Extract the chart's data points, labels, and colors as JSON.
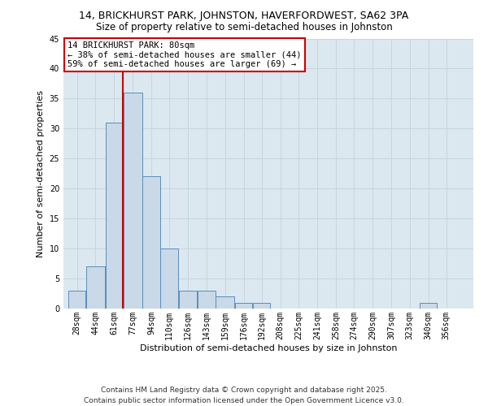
{
  "title": "14, BRICKHURST PARK, JOHNSTON, HAVERFORDWEST, SA62 3PA",
  "subtitle": "Size of property relative to semi-detached houses in Johnston",
  "xlabel": "Distribution of semi-detached houses by size in Johnston",
  "ylabel": "Number of semi-detached properties",
  "bar_labels": [
    "28sqm",
    "44sqm",
    "61sqm",
    "77sqm",
    "94sqm",
    "110sqm",
    "126sqm",
    "143sqm",
    "159sqm",
    "176sqm",
    "192sqm",
    "208sqm",
    "225sqm",
    "241sqm",
    "258sqm",
    "274sqm",
    "290sqm",
    "307sqm",
    "323sqm",
    "340sqm",
    "356sqm"
  ],
  "bar_values": [
    3,
    7,
    31,
    36,
    22,
    10,
    3,
    3,
    2,
    1,
    1,
    0,
    0,
    0,
    0,
    0,
    0,
    0,
    0,
    1,
    0
  ],
  "bar_color": "#c9d9e8",
  "bar_edgecolor": "#5b8db8",
  "bin_edges": [
    28,
    44,
    61,
    77,
    94,
    110,
    126,
    143,
    159,
    176,
    192,
    208,
    225,
    241,
    258,
    274,
    290,
    307,
    323,
    340,
    356,
    372
  ],
  "annotation_text": "14 BRICKHURST PARK: 80sqm\n← 38% of semi-detached houses are smaller (44)\n59% of semi-detached houses are larger (69) →",
  "annotation_box_color": "#ffffff",
  "annotation_box_edgecolor": "#cc0000",
  "vline_color": "#cc0000",
  "vline_x": 77,
  "ylim": [
    0,
    45
  ],
  "yticks": [
    0,
    5,
    10,
    15,
    20,
    25,
    30,
    35,
    40,
    45
  ],
  "grid_color": "#c8d4e0",
  "background_color": "#dce8f0",
  "footer_line1": "Contains HM Land Registry data © Crown copyright and database right 2025.",
  "footer_line2": "Contains public sector information licensed under the Open Government Licence v3.0.",
  "title_fontsize": 9,
  "subtitle_fontsize": 8.5,
  "axis_label_fontsize": 8,
  "tick_fontsize": 7,
  "annotation_fontsize": 7.5,
  "footer_fontsize": 6.5
}
